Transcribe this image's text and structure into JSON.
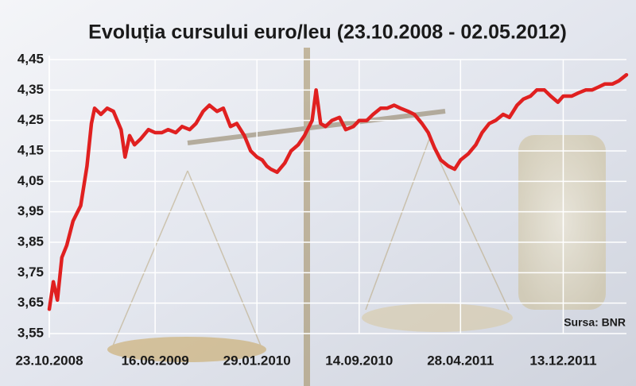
{
  "chart_data": {
    "type": "line",
    "title": "Evoluția cursului euro/leu (23.10.2008 - 02.05.2012)",
    "annotation": "Sursa: BNR",
    "color": "#e02020",
    "grid": true,
    "x": [
      "23.10.2008",
      "01.11.2008",
      "10.11.2008",
      "20.11.2008",
      "01.12.2008",
      "15.12.2008",
      "01.01.2009",
      "15.01.2009",
      "25.01.2009",
      "01.02.2009",
      "15.02.2009",
      "01.03.2009",
      "15.03.2009",
      "01.04.2009",
      "10.04.2009",
      "20.04.2009",
      "01.05.2009",
      "15.05.2009",
      "01.06.2009",
      "16.06.2009",
      "01.07.2009",
      "15.07.2009",
      "01.08.2009",
      "15.08.2009",
      "01.09.2009",
      "15.09.2009",
      "01.10.2009",
      "15.10.2009",
      "01.11.2009",
      "15.11.2009",
      "01.12.2009",
      "15.12.2009",
      "01.01.2010",
      "15.01.2010",
      "29.01.2010",
      "10.02.2010",
      "20.02.2010",
      "01.03.2010",
      "15.03.2010",
      "01.04.2010",
      "15.04.2010",
      "01.05.2010",
      "15.05.2010",
      "01.06.2010",
      "10.06.2010",
      "20.06.2010",
      "01.07.2010",
      "15.07.2010",
      "01.08.2010",
      "15.08.2010",
      "01.09.2010",
      "14.09.2010",
      "01.10.2010",
      "15.10.2010",
      "01.11.2010",
      "15.11.2010",
      "01.12.2010",
      "15.12.2010",
      "01.01.2011",
      "15.01.2011",
      "01.02.2011",
      "15.02.2011",
      "01.03.2011",
      "15.03.2011",
      "01.04.2011",
      "15.04.2011",
      "28.04.2011",
      "15.05.2011",
      "01.06.2011",
      "15.06.2011",
      "01.07.2011",
      "15.07.2011",
      "01.08.2011",
      "15.08.2011",
      "01.09.2011",
      "15.09.2011",
      "01.10.2011",
      "15.10.2011",
      "01.11.2011",
      "15.11.2011",
      "01.12.2011",
      "13.12.2011",
      "01.01.2012",
      "15.01.2012",
      "01.02.2012",
      "15.02.2012",
      "01.03.2012",
      "15.03.2012",
      "01.04.2012",
      "15.04.2012",
      "02.05.2012"
    ],
    "values": [
      3.63,
      3.72,
      3.66,
      3.8,
      3.84,
      3.92,
      3.97,
      4.1,
      4.24,
      4.29,
      4.27,
      4.29,
      4.28,
      4.22,
      4.13,
      4.2,
      4.17,
      4.19,
      4.22,
      4.21,
      4.21,
      4.22,
      4.21,
      4.23,
      4.22,
      4.24,
      4.28,
      4.3,
      4.28,
      4.29,
      4.23,
      4.24,
      4.2,
      4.15,
      4.13,
      4.12,
      4.1,
      4.09,
      4.08,
      4.11,
      4.15,
      4.17,
      4.2,
      4.25,
      4.35,
      4.24,
      4.23,
      4.25,
      4.26,
      4.22,
      4.23,
      4.25,
      4.25,
      4.27,
      4.29,
      4.29,
      4.3,
      4.29,
      4.28,
      4.27,
      4.24,
      4.21,
      4.16,
      4.12,
      4.1,
      4.09,
      4.12,
      4.14,
      4.17,
      4.21,
      4.24,
      4.25,
      4.27,
      4.26,
      4.3,
      4.32,
      4.33,
      4.35,
      4.35,
      4.33,
      4.31,
      4.33,
      4.33,
      4.34,
      4.35,
      4.35,
      4.36,
      4.37,
      4.37,
      4.38,
      4.4
    ],
    "xlim": [
      "23.10.2008",
      "02.05.2012"
    ],
    "xticks": [
      "23.10.2008",
      "16.06.2009",
      "29.01.2010",
      "14.09.2010",
      "28.04.2011",
      "13.12.2011"
    ],
    "ylim": [
      3.55,
      4.45
    ],
    "yticks": [
      {
        "value": 3.55,
        "label": "3,55"
      },
      {
        "value": 3.65,
        "label": "3,65"
      },
      {
        "value": 3.75,
        "label": "3,75"
      },
      {
        "value": 3.85,
        "label": "3,85"
      },
      {
        "value": 3.95,
        "label": "3,95"
      },
      {
        "value": 4.05,
        "label": "4,05"
      },
      {
        "value": 4.15,
        "label": "4,15"
      },
      {
        "value": 4.25,
        "label": "4,25"
      },
      {
        "value": 4.35,
        "label": "4,35"
      },
      {
        "value": 4.45,
        "label": "4,45"
      }
    ]
  }
}
